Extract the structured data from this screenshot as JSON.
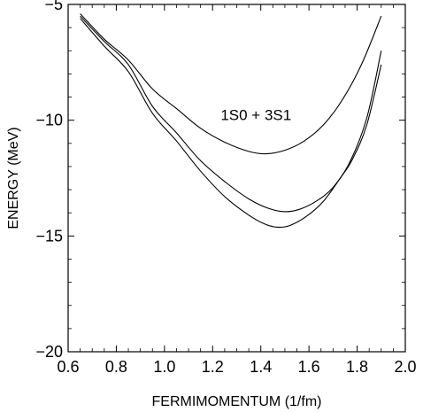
{
  "chart_data": {
    "type": "line",
    "title": "",
    "xlabel": "FERMIMOMENTUM  (1/fm)",
    "ylabel": "ENERGY  (MeV)",
    "xlim": [
      0.6,
      2.0
    ],
    "ylim": [
      -20,
      -5
    ],
    "x_ticks": [
      0.6,
      0.8,
      1.0,
      1.2,
      1.4,
      1.6,
      1.8,
      2.0
    ],
    "x_tick_labels": [
      "0.6",
      "0.8",
      "1.0",
      "1.2",
      "1.4",
      "1.6",
      "1.8",
      "2.0"
    ],
    "y_ticks": [
      -20,
      -15,
      -10,
      -5
    ],
    "y_tick_labels": [
      "−20",
      "−15",
      "−10",
      "−5"
    ],
    "grid": false,
    "annotations": [
      {
        "text": "1S0 + 3S1",
        "x": 1.38,
        "y": -10.0
      }
    ],
    "series": [
      {
        "x": [
          0.65,
          0.75,
          0.85,
          0.95,
          1.05,
          1.15,
          1.25,
          1.35,
          1.42,
          1.5,
          1.58,
          1.66,
          1.74,
          1.82,
          1.9
        ],
        "y": [
          -5.4,
          -6.5,
          -7.4,
          -8.65,
          -9.5,
          -10.35,
          -10.95,
          -11.35,
          -11.45,
          -11.3,
          -10.9,
          -10.2,
          -9.1,
          -7.55,
          -5.5
        ]
      },
      {
        "x": [
          0.65,
          0.75,
          0.85,
          0.95,
          1.05,
          1.15,
          1.25,
          1.35,
          1.43,
          1.5,
          1.56,
          1.63,
          1.7,
          1.77,
          1.84,
          1.9
        ],
        "y": [
          -5.5,
          -6.6,
          -7.6,
          -9.4,
          -10.55,
          -11.75,
          -12.65,
          -13.4,
          -13.8,
          -13.95,
          -13.85,
          -13.5,
          -12.9,
          -11.8,
          -9.9,
          -7.0
        ]
      },
      {
        "x": [
          0.65,
          0.75,
          0.85,
          0.95,
          1.05,
          1.15,
          1.25,
          1.35,
          1.42,
          1.47,
          1.52,
          1.59,
          1.66,
          1.73,
          1.78,
          1.84,
          1.9
        ],
        "y": [
          -5.6,
          -6.8,
          -7.9,
          -9.7,
          -10.9,
          -12.2,
          -13.3,
          -14.1,
          -14.5,
          -14.62,
          -14.55,
          -14.15,
          -13.5,
          -12.5,
          -11.7,
          -10.2,
          -7.6
        ]
      }
    ]
  }
}
